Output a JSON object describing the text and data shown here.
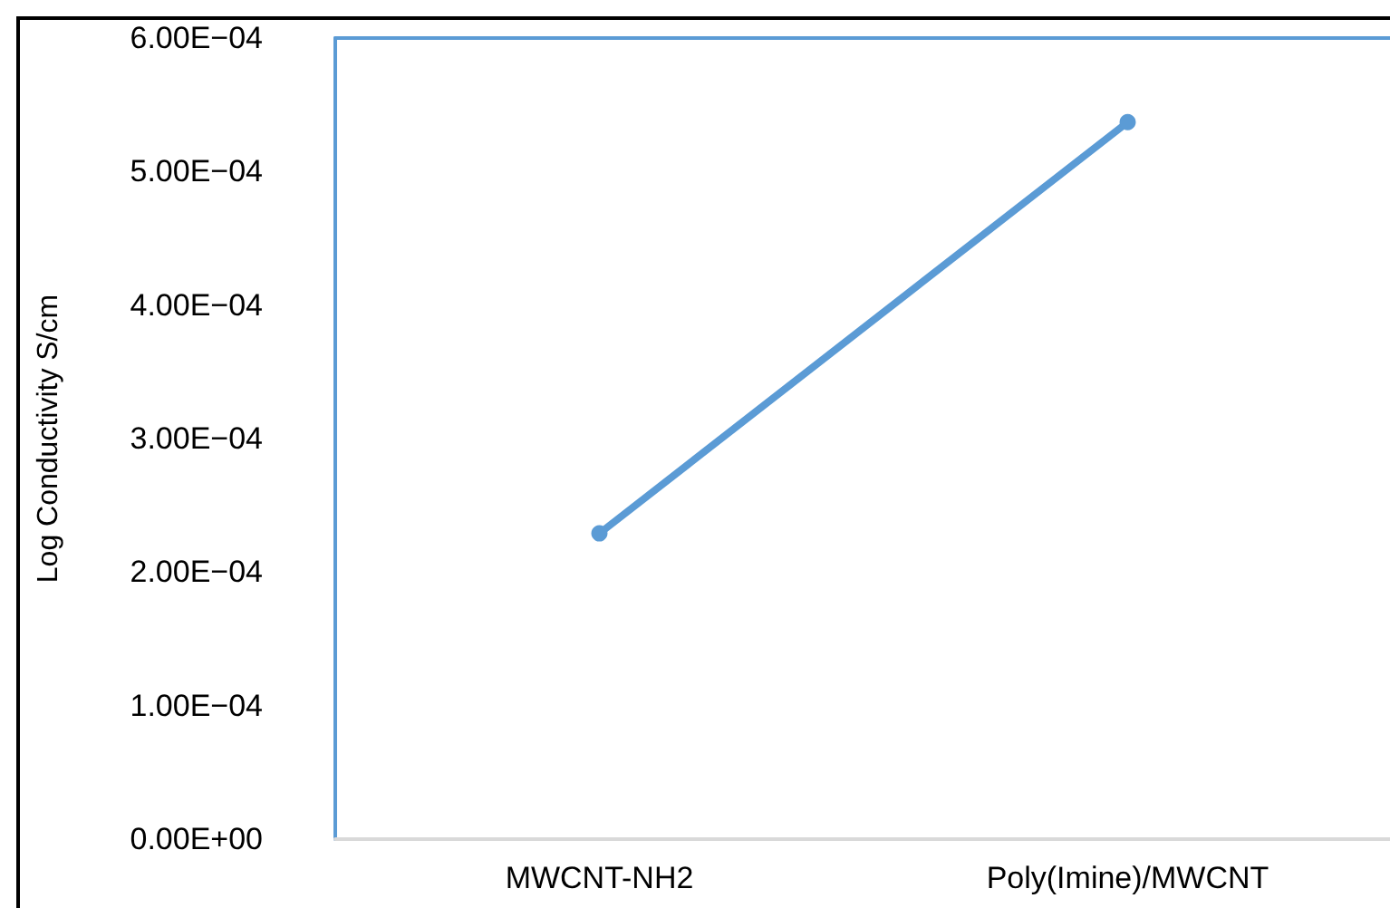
{
  "chart_data": {
    "type": "line",
    "ylabel": "Log Conductivity S/cm",
    "categories": [
      "MWCNT-NH2",
      "Poly(Imine)/MWCNT"
    ],
    "series": [
      {
        "color": "#5b9bd5",
        "values": [
          0.000229,
          0.000537
        ]
      }
    ],
    "ylim": [
      0,
      0.0006
    ],
    "yticks": [
      {
        "value": 0,
        "label": "0.00E+00"
      },
      {
        "value": 0.0001,
        "label": "1.00E−04"
      },
      {
        "value": 0.0002,
        "label": "2.00E−04"
      },
      {
        "value": 0.0003,
        "label": "3.00E−04"
      },
      {
        "value": 0.0004,
        "label": "4.00E−04"
      },
      {
        "value": 0.0005,
        "label": "5.00E−04"
      },
      {
        "value": 0.0006,
        "label": "6.00E−04"
      }
    ],
    "marker": "circle",
    "line_style": "solid"
  }
}
